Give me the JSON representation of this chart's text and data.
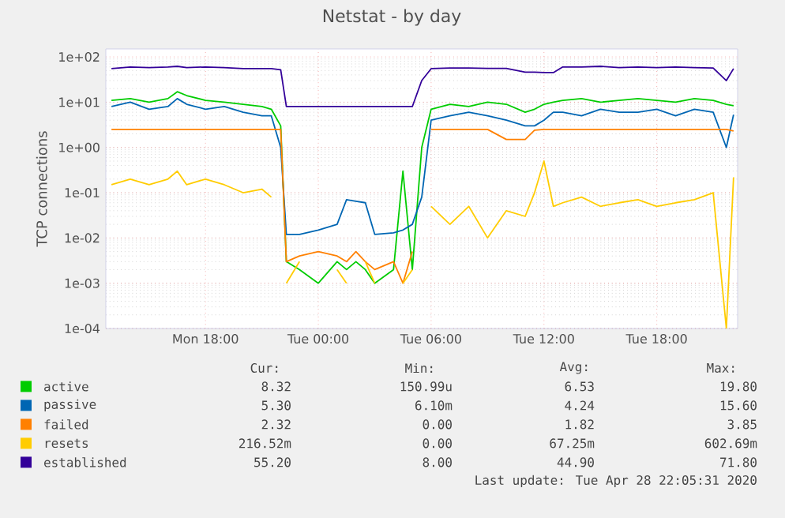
{
  "chart_data": {
    "type": "line",
    "title": "Netstat - by day",
    "ylabel": "TCP connections",
    "log": "y",
    "grid": true,
    "legend": "bottom",
    "line_style": "solid",
    "marker": "none",
    "xlim": [
      "2020-04-27T12:42",
      "2020-04-28T22:18"
    ],
    "ylim": [
      0.0001,
      150
    ],
    "xticks": [
      {
        "value": "2020-04-27T18:00",
        "label": "Mon 18:00"
      },
      {
        "value": "2020-04-28T00:00",
        "label": "Tue 00:00"
      },
      {
        "value": "2020-04-28T06:00",
        "label": "Tue 06:00"
      },
      {
        "value": "2020-04-28T12:00",
        "label": "Tue 12:00"
      },
      {
        "value": "2020-04-28T18:00",
        "label": "Tue 18:00"
      }
    ],
    "yticks": [
      {
        "value": 0.0001,
        "label": "1e-04"
      },
      {
        "value": 0.001,
        "label": "1e-03"
      },
      {
        "value": 0.01,
        "label": "1e-02"
      },
      {
        "value": 0.1,
        "label": "1e-01"
      },
      {
        "value": 1,
        "label": "1e+00"
      },
      {
        "value": 10,
        "label": "1e+01"
      },
      {
        "value": 100,
        "label": "1e+02"
      }
    ],
    "x": [
      "2020-04-27T13:00",
      "2020-04-27T14:00",
      "2020-04-27T15:00",
      "2020-04-27T16:00",
      "2020-04-27T16:30",
      "2020-04-27T17:00",
      "2020-04-27T18:00",
      "2020-04-27T19:00",
      "2020-04-27T20:00",
      "2020-04-27T21:00",
      "2020-04-27T21:30",
      "2020-04-27T22:00",
      "2020-04-27T22:18",
      "2020-04-27T23:00",
      "2020-04-28T00:00",
      "2020-04-28T01:00",
      "2020-04-28T01:30",
      "2020-04-28T02:00",
      "2020-04-28T02:30",
      "2020-04-28T03:00",
      "2020-04-28T04:00",
      "2020-04-28T04:30",
      "2020-04-28T05:00",
      "2020-04-28T05:30",
      "2020-04-28T06:00",
      "2020-04-28T07:00",
      "2020-04-28T08:00",
      "2020-04-28T09:00",
      "2020-04-28T10:00",
      "2020-04-28T11:00",
      "2020-04-28T11:30",
      "2020-04-28T12:00",
      "2020-04-28T12:30",
      "2020-04-28T13:00",
      "2020-04-28T14:00",
      "2020-04-28T15:00",
      "2020-04-28T16:00",
      "2020-04-28T17:00",
      "2020-04-28T18:00",
      "2020-04-28T19:00",
      "2020-04-28T20:00",
      "2020-04-28T21:00",
      "2020-04-28T21:42",
      "2020-04-28T22:05"
    ],
    "series": [
      {
        "name": "active",
        "color": "#00cc00",
        "values": [
          11,
          12,
          10,
          12,
          17,
          14,
          11,
          10,
          9,
          8,
          7,
          3,
          0.003,
          0.002,
          0.001,
          0.003,
          0.002,
          0.003,
          0.002,
          0.001,
          0.002,
          0.3,
          0.002,
          1,
          7,
          9,
          8,
          10,
          9,
          6,
          7,
          9,
          10,
          11,
          12,
          10,
          11,
          12,
          11,
          10,
          12,
          11,
          9,
          8.32
        ]
      },
      {
        "name": "passive",
        "color": "#0066b3",
        "values": [
          8,
          10,
          7,
          8,
          12,
          9,
          7,
          8,
          6,
          5,
          5,
          1,
          0.012,
          0.012,
          0.015,
          0.02,
          0.07,
          0.065,
          0.06,
          0.012,
          0.013,
          0.015,
          0.02,
          0.08,
          4,
          5,
          6,
          5,
          4,
          3,
          3,
          4,
          6,
          6,
          5,
          7,
          6,
          6,
          7,
          5,
          7,
          6,
          1,
          5.3
        ]
      },
      {
        "name": "failed",
        "color": "#ff8000",
        "values": [
          2.5,
          2.5,
          2.5,
          2.5,
          2.5,
          2.5,
          2.5,
          2.5,
          2.5,
          2.5,
          2.5,
          2.5,
          0.003,
          0.004,
          0.005,
          0.004,
          0.003,
          0.005,
          0.003,
          0.002,
          0.003,
          0.001,
          0.005,
          null,
          2.5,
          2.5,
          2.5,
          2.5,
          1.5,
          1.5,
          2.4,
          2.5,
          2.5,
          2.5,
          2.5,
          2.5,
          2.5,
          2.5,
          2.5,
          2.5,
          2.5,
          2.5,
          2.5,
          2.32
        ]
      },
      {
        "name": "resets",
        "color": "#ffcc00",
        "values": [
          0.15,
          0.2,
          0.15,
          0.2,
          0.3,
          0.15,
          0.2,
          0.15,
          0.1,
          0.12,
          0.08,
          null,
          0.001,
          0.003,
          null,
          0.002,
          0.001,
          null,
          0.003,
          0.001,
          null,
          0.001,
          0.002,
          null,
          0.05,
          0.02,
          0.05,
          0.01,
          0.04,
          0.03,
          0.1,
          0.5,
          0.05,
          0.06,
          0.08,
          0.05,
          0.06,
          0.07,
          0.05,
          0.06,
          0.07,
          0.1,
          0.0001,
          0.22
        ]
      },
      {
        "name": "established",
        "color": "#330099",
        "values": [
          55,
          60,
          58,
          60,
          62,
          58,
          60,
          58,
          55,
          55,
          55,
          52,
          8,
          8,
          8,
          8,
          8,
          8,
          8,
          8,
          8,
          8,
          8,
          30,
          55,
          57,
          57,
          56,
          56,
          46,
          46,
          45,
          45,
          60,
          60,
          62,
          58,
          60,
          58,
          60,
          58,
          57,
          30,
          55.2
        ]
      }
    ],
    "annotations": [
      "Cur:",
      "Min:",
      "Avg:",
      "Max:",
      "8.32",
      "150.99u",
      "6.53",
      "19.80",
      "5.30",
      "6.10m",
      "4.24",
      "15.60",
      "2.32",
      "0.00",
      "1.82",
      "3.85",
      "216.52m",
      "0.00",
      "67.25m",
      "602.69m",
      "55.20",
      "8.00",
      "44.90",
      "71.80",
      "Last update: Tue Apr 28 22:05:31 2020"
    ]
  }
}
